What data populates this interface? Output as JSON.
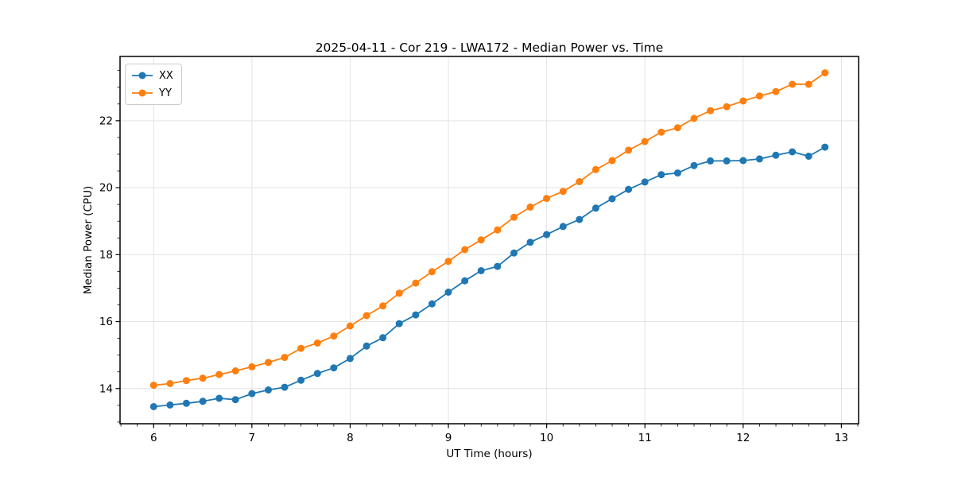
{
  "title": "2025-04-11 - Cor 219 - LWA172 - Median Power vs. Time",
  "colors": {
    "background": "#ffffff",
    "grid": "#e3e3e3",
    "spine": "#000000",
    "text": "#000000",
    "series_xx": "#1f77b4",
    "series_yy": "#ff7f0e"
  },
  "legend": {
    "position": "upper-left",
    "entries": [
      "XX",
      "YY"
    ]
  },
  "chart_data": {
    "type": "line",
    "title": "2025-04-11 - Cor 219 - LWA172 - Median Power vs. Time",
    "xlabel": "UT Time (hours)",
    "ylabel": "Median Power (CPU)",
    "xlim": [
      5.658,
      13.175
    ],
    "ylim": [
      12.95,
      23.92
    ],
    "x_ticks": [
      6,
      7,
      8,
      9,
      10,
      11,
      12,
      13
    ],
    "y_ticks": [
      14,
      16,
      18,
      20,
      22
    ],
    "x_minor_step": 0.16667,
    "y_minor_step": 0.5,
    "grid": "major",
    "marker": "circle",
    "legend_position": "upper-left",
    "x": [
      6.0,
      6.167,
      6.333,
      6.5,
      6.667,
      6.833,
      7.0,
      7.167,
      7.333,
      7.5,
      7.667,
      7.833,
      8.0,
      8.167,
      8.333,
      8.5,
      8.667,
      8.833,
      9.0,
      9.167,
      9.333,
      9.5,
      9.667,
      9.833,
      10.0,
      10.167,
      10.333,
      10.5,
      10.667,
      10.833,
      11.0,
      11.167,
      11.333,
      11.5,
      11.667,
      11.833,
      12.0,
      12.167,
      12.333,
      12.5,
      12.667,
      12.833
    ],
    "series": [
      {
        "name": "XX",
        "color": "#1f77b4",
        "values": [
          13.46,
          13.51,
          13.56,
          13.62,
          13.71,
          13.67,
          13.85,
          13.96,
          14.04,
          14.25,
          14.45,
          14.62,
          14.9,
          15.27,
          15.52,
          15.94,
          16.2,
          16.53,
          16.88,
          17.22,
          17.52,
          17.65,
          18.05,
          18.37,
          18.6,
          18.84,
          19.05,
          19.39,
          19.67,
          19.95,
          20.17,
          20.39,
          20.44,
          20.66,
          20.8,
          20.8,
          20.81,
          20.86,
          20.97,
          21.07,
          20.94,
          21.21
        ]
      },
      {
        "name": "YY",
        "color": "#ff7f0e",
        "values": [
          14.1,
          14.15,
          14.24,
          14.31,
          14.42,
          14.53,
          14.65,
          14.78,
          14.93,
          15.2,
          15.36,
          15.57,
          15.87,
          16.18,
          16.47,
          16.85,
          17.15,
          17.49,
          17.8,
          18.15,
          18.44,
          18.74,
          19.12,
          19.42,
          19.68,
          19.89,
          20.18,
          20.54,
          20.81,
          21.12,
          21.38,
          21.66,
          21.79,
          22.07,
          22.3,
          22.42,
          22.59,
          22.74,
          22.87,
          23.09,
          23.09,
          23.43
        ]
      }
    ]
  }
}
